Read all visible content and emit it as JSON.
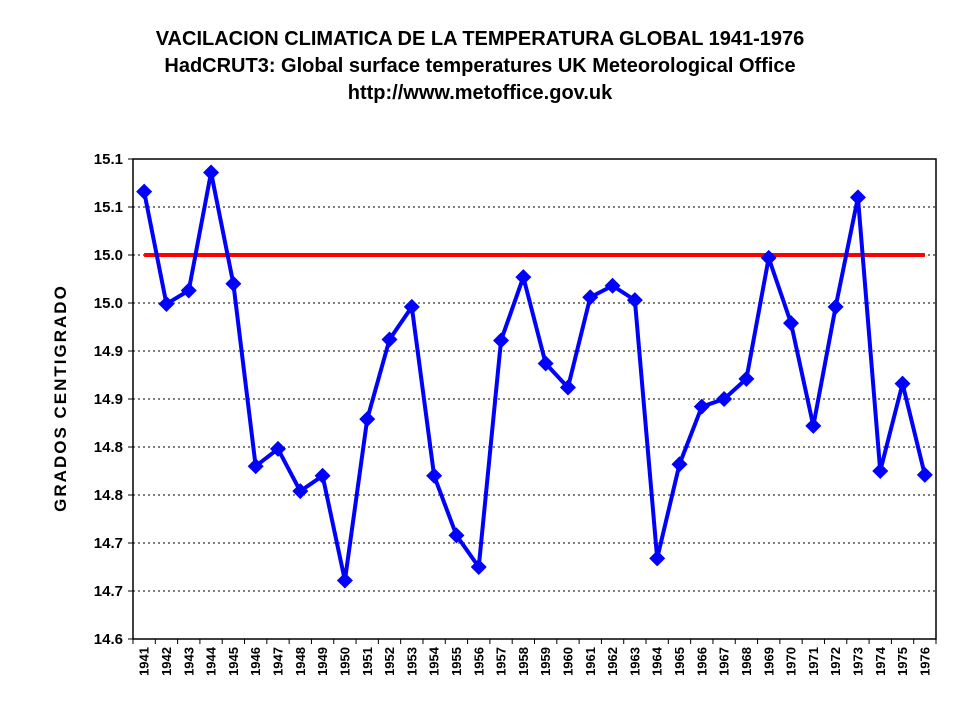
{
  "chart_data": {
    "type": "line",
    "title": "VACILACION CLIMATICA  DE LA TEMPERATURA GLOBAL 1941-1976",
    "subtitle": "HadCRUT3: Global surface temperatures UK Meteorological Office",
    "source_url": "http://www.metoffice.gov.uk",
    "xlabel": "",
    "ylabel": "GRADOS CENTIGRADO",
    "ylim": [
      14.6,
      15.1
    ],
    "y_tick_values": [
      14.6,
      14.65,
      14.7,
      14.75,
      14.8,
      14.85,
      14.9,
      14.95,
      15.0,
      15.05,
      15.1
    ],
    "y_tick_labels": [
      "14.6",
      "14.7",
      "14.7",
      "14.8",
      "14.8",
      "14.9",
      "14.9",
      "15.0",
      "15.0",
      "15.1",
      "15.1"
    ],
    "grid": true,
    "legend": "none",
    "categories": [
      "1941",
      "1942",
      "1943",
      "1944",
      "1945",
      "1946",
      "1947",
      "1948",
      "1949",
      "1950",
      "1951",
      "1952",
      "1953",
      "1954",
      "1955",
      "1956",
      "1957",
      "1958",
      "1959",
      "1960",
      "1961",
      "1962",
      "1963",
      "1964",
      "1965",
      "1966",
      "1967",
      "1968",
      "1969",
      "1970",
      "1971",
      "1972",
      "1973",
      "1974",
      "1975",
      "1976"
    ],
    "series": [
      {
        "color": "#0000ff",
        "marker": "diamond",
        "values": [
          15.066,
          14.949,
          14.963,
          15.086,
          14.97,
          14.78,
          14.798,
          14.754,
          14.77,
          14.661,
          14.829,
          14.912,
          14.946,
          14.77,
          14.708,
          14.675,
          14.911,
          14.977,
          14.887,
          14.862,
          14.956,
          14.968,
          14.953,
          14.684,
          14.782,
          14.842,
          14.85,
          14.871,
          14.997,
          14.929,
          14.822,
          14.946,
          15.06,
          14.775,
          14.866,
          14.771
        ]
      }
    ],
    "reference_line": {
      "value": 15.0,
      "color": "#ff0000"
    }
  }
}
